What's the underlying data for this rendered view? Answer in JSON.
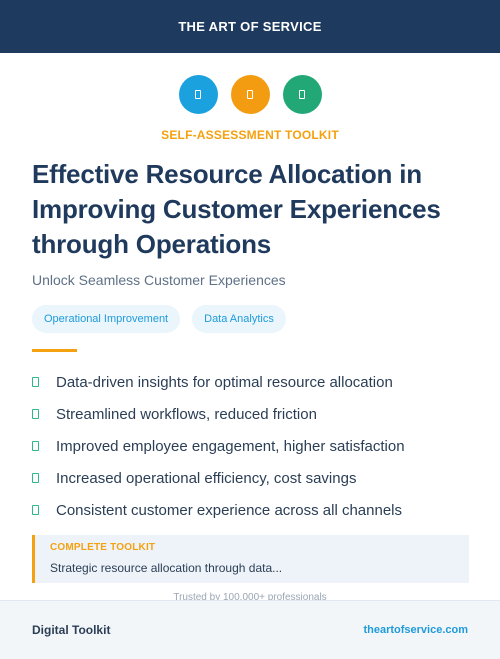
{
  "header": {
    "brand": "THE ART OF SERVICE"
  },
  "icons": [
    {
      "name": "document-icon",
      "color": "#1aa1de"
    },
    {
      "name": "document-icon",
      "color": "#f39c12"
    },
    {
      "name": "document-icon",
      "color": "#21a876"
    }
  ],
  "kicker": "SELF-ASSESSMENT TOOLKIT",
  "title": "Effective Resource Allocation in Improving Customer Experiences through Operations",
  "subtitle": "Unlock Seamless Customer Experiences",
  "tags": [
    "Operational Improvement",
    "Data Analytics"
  ],
  "benefits": [
    "Data-driven insights for optimal resource allocation",
    "Streamlined workflows, reduced friction",
    "Improved employee engagement, higher satisfaction",
    "Increased operational efficiency, cost savings",
    "Consistent customer experience across all channels"
  ],
  "callout": {
    "label": "COMPLETE TOOLKIT",
    "text": "Strategic resource allocation through data..."
  },
  "trusted": "Trusted by 100,000+ professionals",
  "footer": {
    "left": "Digital Toolkit",
    "right": "theartofservice.com"
  }
}
